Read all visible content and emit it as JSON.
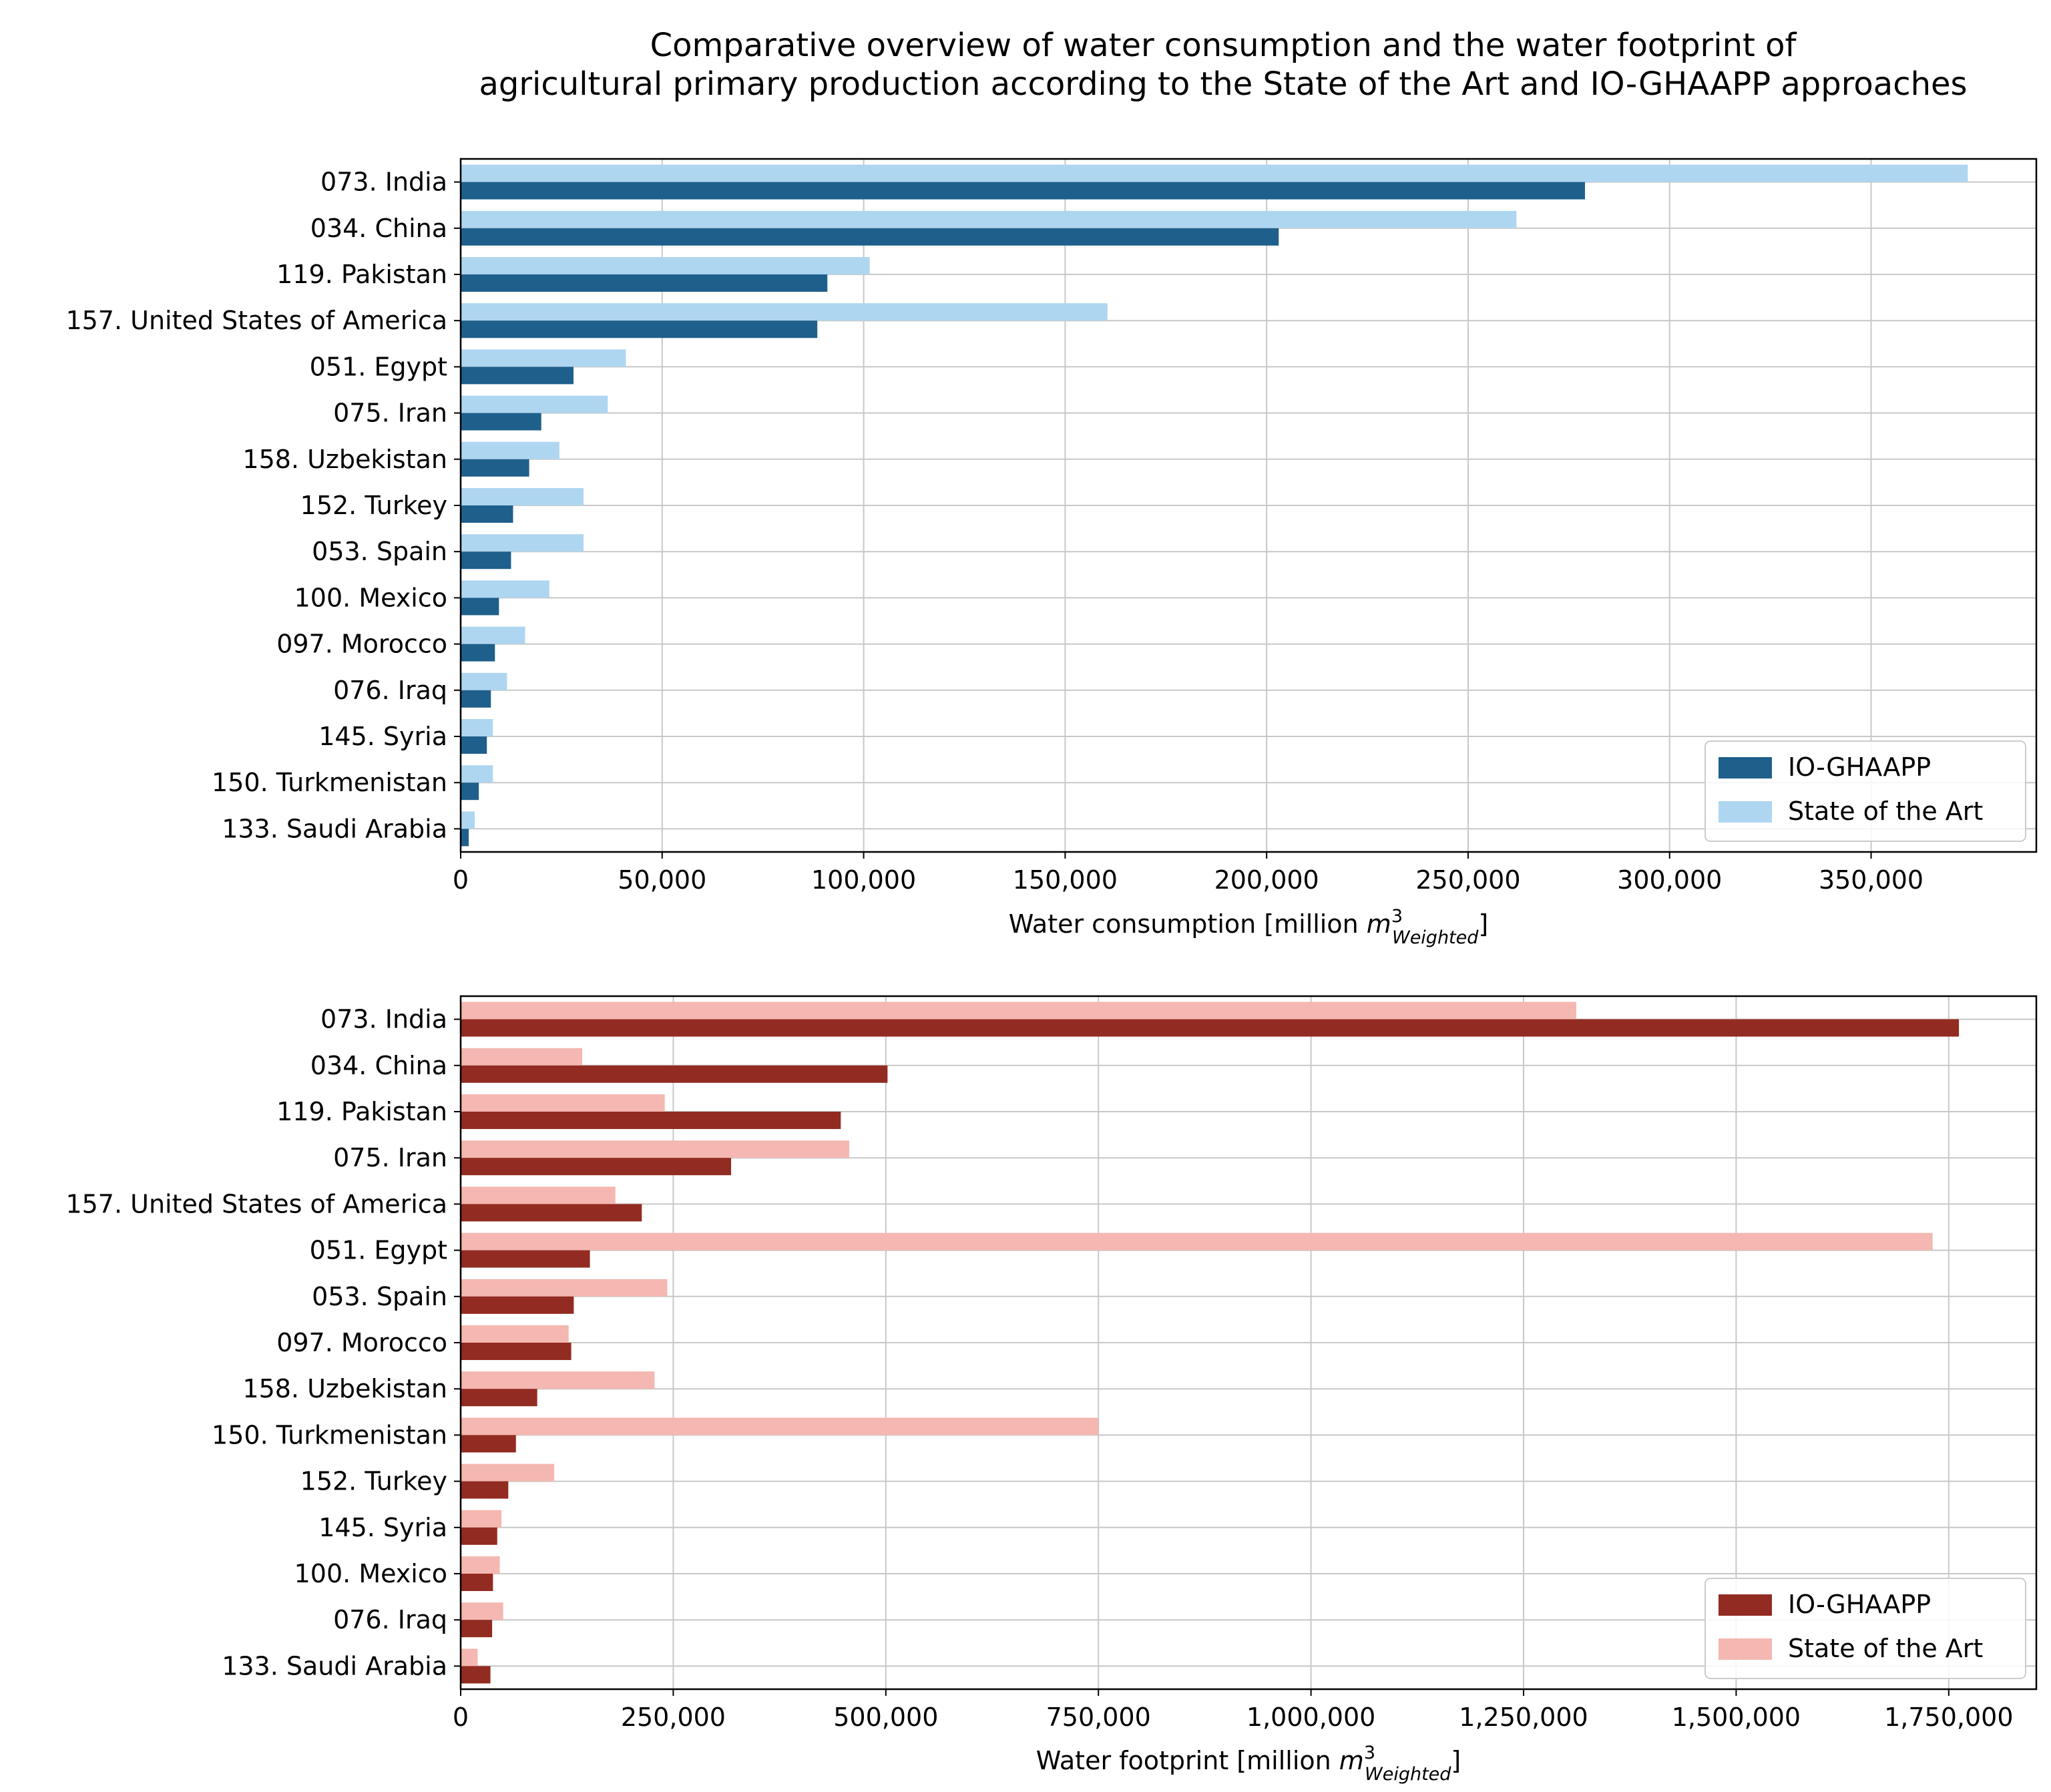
{
  "figure": {
    "title_lines": [
      "Comparative overview of water consumption and the water footprint of",
      "agricultural primary production according to the State of the Art and IO-GHAAPP approaches"
    ]
  },
  "chart_data": [
    {
      "type": "bar",
      "orientation": "horizontal",
      "categories": [
        "073. India",
        "034. China",
        "119. Pakistan",
        "157. United States of America",
        "051. Egypt",
        "075. Iran",
        "158. Uzbekistan",
        "152. Turkey",
        "053. Spain",
        "100. Mexico",
        "097. Morocco",
        "076. Iraq",
        "145. Syria",
        "150. Turkmenistan",
        "133. Saudi Arabia"
      ],
      "series": [
        {
          "name": "IO-GHAAPP",
          "color": "#1f5f8b",
          "values": [
            279000,
            203000,
            91000,
            88500,
            28000,
            20000,
            17000,
            13000,
            12500,
            9500,
            8500,
            7500,
            6500,
            4500,
            2000
          ]
        },
        {
          "name": "State of the Art",
          "color": "#afd6f0",
          "values": [
            374000,
            262000,
            101500,
            160500,
            41000,
            36500,
            24500,
            30500,
            30500,
            22000,
            16000,
            11500,
            8000,
            8000,
            3500
          ]
        }
      ],
      "xlabel_main": "Water consumption [million ",
      "xlabel_var": "m",
      "xlabel_sup": "3",
      "xlabel_sub": "Weighted",
      "xlabel_end": "]",
      "xlim": [
        0,
        391000
      ],
      "xticks": [
        0,
        50000,
        100000,
        150000,
        200000,
        250000,
        300000,
        350000
      ],
      "xtick_labels": [
        "0",
        "50,000",
        "100,000",
        "150,000",
        "200,000",
        "250,000",
        "300,000",
        "350,000"
      ],
      "grid": true,
      "legend": {
        "placement": "bottom-right",
        "entries": [
          "IO-GHAAPP",
          "State of the Art"
        ]
      }
    },
    {
      "type": "bar",
      "orientation": "horizontal",
      "categories": [
        "073. India",
        "034. China",
        "119. Pakistan",
        "075. Iran",
        "157. United States of America",
        "051. Egypt",
        "053. Spain",
        "097. Morocco",
        "158. Uzbekistan",
        "150. Turkmenistan",
        "152. Turkey",
        "145. Syria",
        "100. Mexico",
        "076. Iraq",
        "133. Saudi Arabia"
      ],
      "series": [
        {
          "name": "IO-GHAAPP",
          "color": "#922b21",
          "values": [
            1762000,
            502000,
            447000,
            318000,
            213000,
            152000,
            133000,
            130000,
            90000,
            65000,
            56000,
            43000,
            38000,
            37000,
            35000
          ]
        },
        {
          "name": "State of the Art",
          "color": "#f5b7b1",
          "values": [
            1312000,
            143000,
            240000,
            457000,
            182000,
            1731000,
            243000,
            127000,
            228000,
            750000,
            110000,
            48000,
            46000,
            50000,
            20000
          ]
        }
      ],
      "xlabel_main": "Water footprint [million ",
      "xlabel_var": "m",
      "xlabel_sup": "3",
      "xlabel_sub": "Weighted",
      "xlabel_end": "]",
      "xlim": [
        0,
        1853000
      ],
      "xticks": [
        0,
        250000,
        500000,
        750000,
        1000000,
        1250000,
        1500000,
        1750000
      ],
      "xtick_labels": [
        "0",
        "250,000",
        "500,000",
        "750,000",
        "1,000,000",
        "1,250,000",
        "1,500,000",
        "1,750,000"
      ],
      "grid": true,
      "legend": {
        "placement": "bottom-right",
        "entries": [
          "IO-GHAAPP",
          "State of the Art"
        ]
      }
    }
  ]
}
